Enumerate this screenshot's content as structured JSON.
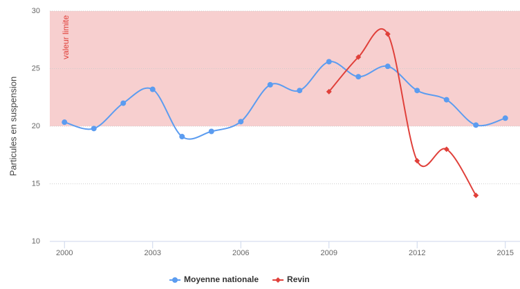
{
  "chart_data": {
    "type": "line",
    "y_label": "Particules en suspension",
    "x": [
      2000,
      2001,
      2002,
      2003,
      2004,
      2005,
      2006,
      2007,
      2008,
      2009,
      2010,
      2011,
      2012,
      2013,
      2014,
      2015
    ],
    "series": [
      {
        "name": "Moyenne nationale",
        "color": "#5b9cf0",
        "marker": "circle",
        "values": [
          20.35,
          19.8,
          22.0,
          23.2,
          19.1,
          19.55,
          20.4,
          23.6,
          23.1,
          25.6,
          24.3,
          25.2,
          23.1,
          22.3,
          20.1,
          20.7
        ]
      },
      {
        "name": "Revin",
        "color": "#e0403a",
        "marker": "diamond",
        "values": [
          null,
          null,
          null,
          null,
          null,
          null,
          null,
          null,
          null,
          23,
          26,
          28,
          17,
          18,
          14,
          null
        ]
      }
    ],
    "plot_bands": [
      {
        "from": 20,
        "to": 30,
        "label": "valeur limite",
        "color": "#f7cfcf",
        "label_color": "#e0403a"
      }
    ],
    "xlim": [
      1999.5,
      2015.5
    ],
    "xticks": [
      2000,
      2003,
      2006,
      2009,
      2012,
      2015
    ],
    "ylim": [
      10,
      30
    ],
    "yticks": [
      10,
      15,
      20,
      25,
      30
    ],
    "grid": true,
    "legend": "bottom"
  }
}
